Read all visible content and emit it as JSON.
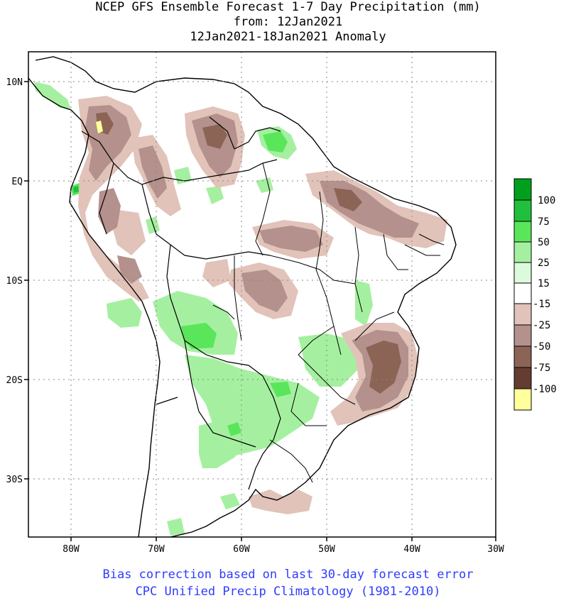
{
  "title": {
    "line1": "NCEP GFS Ensemble Forecast 1-7 Day Precipitation (mm)",
    "line2": "from: 12Jan2021",
    "line3": "12Jan2021-18Jan2021 Anomaly"
  },
  "axes": {
    "lat_labels": [
      "10N",
      "EQ",
      "10S",
      "20S",
      "30S"
    ],
    "lon_labels": [
      "80W",
      "70W",
      "60W",
      "50W",
      "40W",
      "30W"
    ]
  },
  "legend": {
    "labels": [
      "100",
      "75",
      "50",
      "25",
      "15",
      "-15",
      "-25",
      "-50",
      "-75",
      "-100"
    ],
    "colors": [
      "#00a01e",
      "#20c03c",
      "#5ae65a",
      "#a5f0a0",
      "#dcfadc",
      "#ffffff",
      "#e1c3b9",
      "#b4918c",
      "#8c6455",
      "#643c32",
      "#ffff9c"
    ]
  },
  "footer": {
    "line1": "Bias correction based on last 30-day forecast error",
    "line2": "CPC Unified Precip Climatology (1981-2010)"
  }
}
